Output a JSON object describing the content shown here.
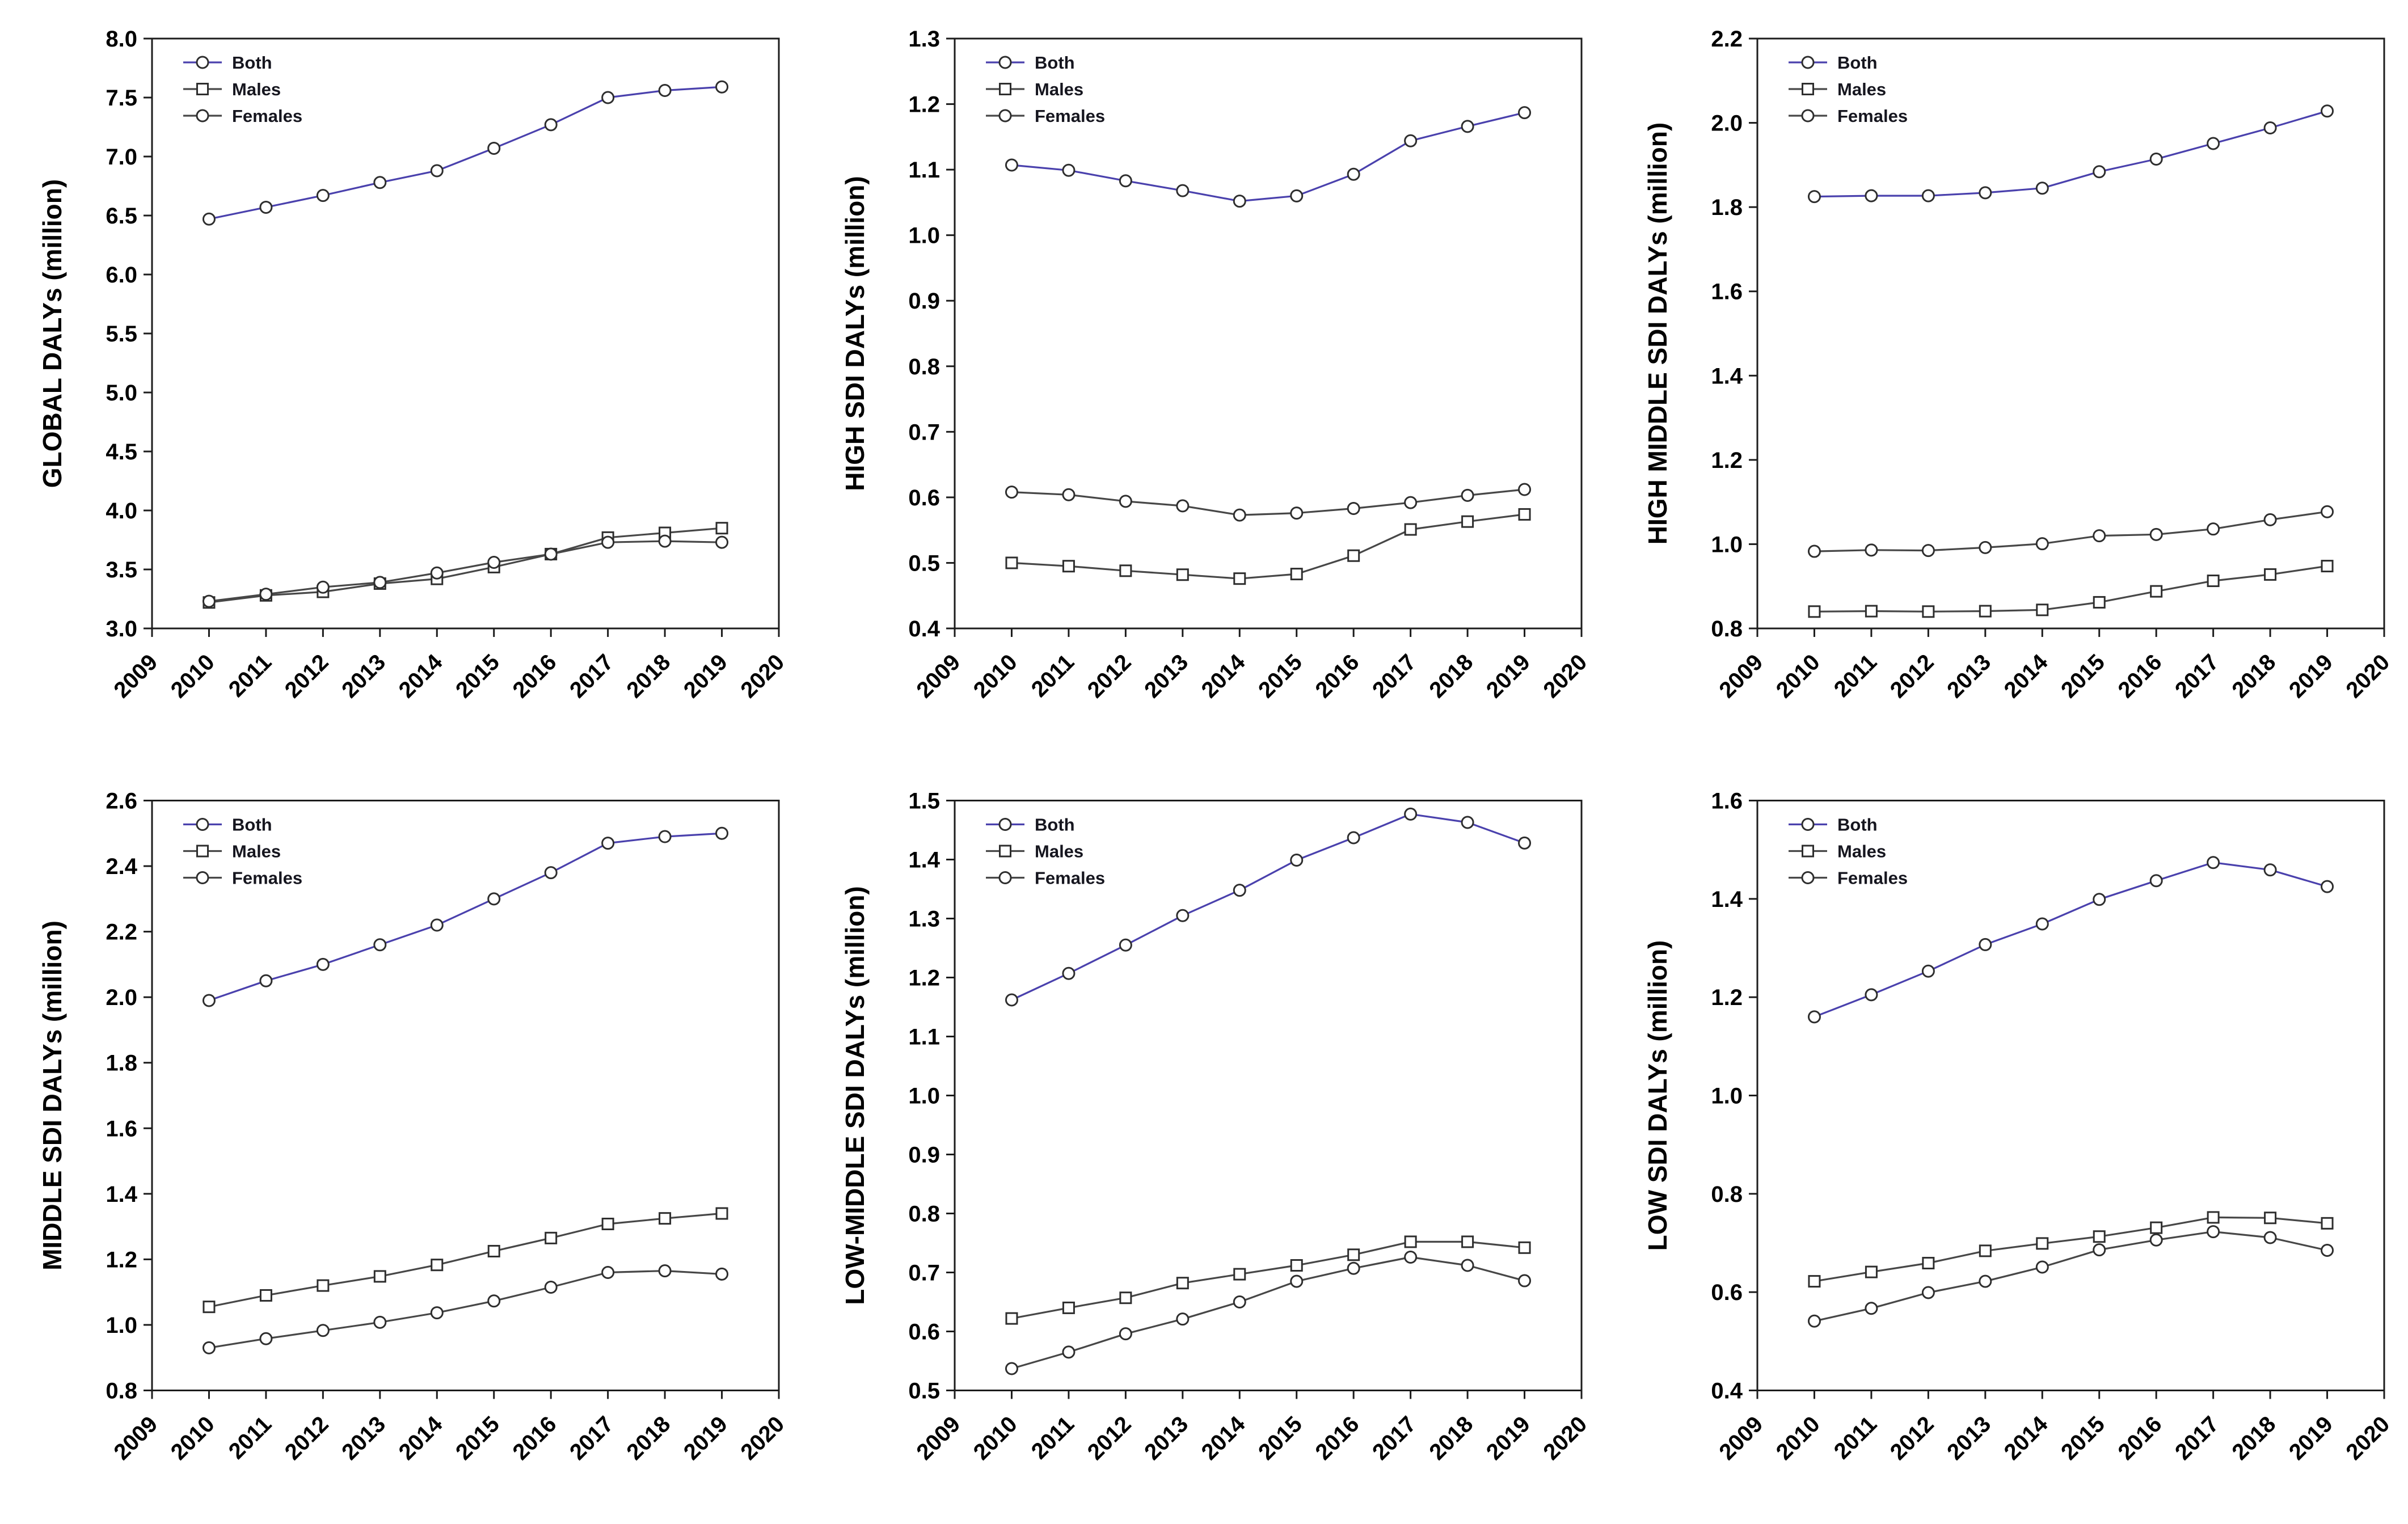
{
  "style": {
    "background": "#ffffff",
    "axis_color": "#1c1c1c",
    "text_color": "#000000",
    "both_line_color": "#4a41ad",
    "sex_line_color": "#474747",
    "marker_stroke": "#2e2e2e",
    "marker_fill": "#ffffff"
  },
  "chart_data": [
    {
      "type": "line",
      "ylabel": "GLOBAL DALYs (million)",
      "xlabel": "",
      "ylim": [
        3.0,
        8.0
      ],
      "ytick_step": 0.5,
      "xlim": [
        2009,
        2020
      ],
      "xticks": [
        2009,
        2010,
        2011,
        2012,
        2013,
        2014,
        2015,
        2016,
        2017,
        2018,
        2019,
        2020
      ],
      "x": [
        2010,
        2011,
        2012,
        2013,
        2014,
        2015,
        2016,
        2017,
        2018,
        2019
      ],
      "grid": false,
      "legend_position": "top-left",
      "series": [
        {
          "name": "Both",
          "marker": "circle",
          "color": "#4a41ad",
          "values": [
            6.47,
            6.57,
            6.67,
            6.78,
            6.88,
            7.07,
            7.27,
            7.5,
            7.56,
            7.59
          ]
        },
        {
          "name": "Males",
          "marker": "square",
          "color": "#474747",
          "values": [
            3.22,
            3.28,
            3.31,
            3.38,
            3.42,
            3.52,
            3.63,
            3.77,
            3.81,
            3.85
          ]
        },
        {
          "name": "Females",
          "marker": "circle",
          "color": "#474747",
          "values": [
            3.23,
            3.29,
            3.35,
            3.39,
            3.47,
            3.56,
            3.63,
            3.73,
            3.74,
            3.73
          ]
        }
      ]
    },
    {
      "type": "line",
      "ylabel": "HIGH SDI DALYs (million)",
      "xlabel": "",
      "ylim": [
        0.4,
        1.3
      ],
      "ytick_step": 0.1,
      "xlim": [
        2009,
        2020
      ],
      "xticks": [
        2009,
        2010,
        2011,
        2012,
        2013,
        2014,
        2015,
        2016,
        2017,
        2018,
        2019,
        2020
      ],
      "x": [
        2010,
        2011,
        2012,
        2013,
        2014,
        2015,
        2016,
        2017,
        2018,
        2019
      ],
      "grid": false,
      "legend_position": "top-left",
      "series": [
        {
          "name": "Both",
          "marker": "circle",
          "color": "#4a41ad",
          "values": [
            1.107,
            1.099,
            1.083,
            1.068,
            1.052,
            1.06,
            1.093,
            1.144,
            1.166,
            1.187
          ]
        },
        {
          "name": "Males",
          "marker": "square",
          "color": "#474747",
          "values": [
            0.5,
            0.495,
            0.488,
            0.482,
            0.476,
            0.483,
            0.511,
            0.551,
            0.563,
            0.574
          ]
        },
        {
          "name": "Females",
          "marker": "circle",
          "color": "#474747",
          "values": [
            0.608,
            0.604,
            0.594,
            0.587,
            0.573,
            0.576,
            0.583,
            0.592,
            0.603,
            0.612
          ]
        }
      ]
    },
    {
      "type": "line",
      "ylabel": "HIGH MIDDLE SDI DALYs (million)",
      "xlabel": "",
      "ylim": [
        0.8,
        2.2
      ],
      "ytick_step": 0.2,
      "xlim": [
        2009,
        2020
      ],
      "xticks": [
        2009,
        2010,
        2011,
        2012,
        2013,
        2014,
        2015,
        2016,
        2017,
        2018,
        2019,
        2020
      ],
      "x": [
        2010,
        2011,
        2012,
        2013,
        2014,
        2015,
        2016,
        2017,
        2018,
        2019
      ],
      "grid": false,
      "legend_position": "top-left",
      "series": [
        {
          "name": "Both",
          "marker": "circle",
          "color": "#4a41ad",
          "values": [
            1.825,
            1.827,
            1.827,
            1.834,
            1.845,
            1.884,
            1.914,
            1.951,
            1.988,
            2.028
          ]
        },
        {
          "name": "Males",
          "marker": "square",
          "color": "#474747",
          "values": [
            0.84,
            0.841,
            0.84,
            0.841,
            0.844,
            0.862,
            0.888,
            0.913,
            0.928,
            0.948
          ]
        },
        {
          "name": "Females",
          "marker": "circle",
          "color": "#474747",
          "values": [
            0.983,
            0.986,
            0.985,
            0.992,
            1.001,
            1.02,
            1.023,
            1.036,
            1.058,
            1.077
          ]
        }
      ]
    },
    {
      "type": "line",
      "ylabel": "MIDDLE SDI DALYs (million)",
      "xlabel": "",
      "ylim": [
        0.8,
        2.6
      ],
      "ytick_step": 0.2,
      "xlim": [
        2009,
        2020
      ],
      "xticks": [
        2009,
        2010,
        2011,
        2012,
        2013,
        2014,
        2015,
        2016,
        2017,
        2018,
        2019,
        2020
      ],
      "x": [
        2010,
        2011,
        2012,
        2013,
        2014,
        2015,
        2016,
        2017,
        2018,
        2019
      ],
      "grid": false,
      "legend_position": "top-left",
      "series": [
        {
          "name": "Both",
          "marker": "circle",
          "color": "#4a41ad",
          "values": [
            1.99,
            2.05,
            2.1,
            2.16,
            2.22,
            2.3,
            2.38,
            2.47,
            2.49,
            2.5
          ]
        },
        {
          "name": "Males",
          "marker": "square",
          "color": "#474747",
          "values": [
            1.055,
            1.09,
            1.12,
            1.148,
            1.183,
            1.225,
            1.265,
            1.308,
            1.325,
            1.34
          ]
        },
        {
          "name": "Females",
          "marker": "circle",
          "color": "#474747",
          "values": [
            0.93,
            0.958,
            0.983,
            1.008,
            1.037,
            1.073,
            1.115,
            1.16,
            1.165,
            1.155
          ]
        }
      ]
    },
    {
      "type": "line",
      "ylabel": "LOW-MIDDLE SDI DALYs (million)",
      "xlabel": "",
      "ylim": [
        0.5,
        1.5
      ],
      "ytick_step": 0.1,
      "xlim": [
        2009,
        2020
      ],
      "xticks": [
        2009,
        2010,
        2011,
        2012,
        2013,
        2014,
        2015,
        2016,
        2017,
        2018,
        2019,
        2020
      ],
      "x": [
        2010,
        2011,
        2012,
        2013,
        2014,
        2015,
        2016,
        2017,
        2018,
        2019
      ],
      "grid": false,
      "legend_position": "top-left",
      "series": [
        {
          "name": "Both",
          "marker": "circle",
          "color": "#4a41ad",
          "values": [
            1.162,
            1.207,
            1.255,
            1.305,
            1.348,
            1.399,
            1.437,
            1.477,
            1.463,
            1.428
          ]
        },
        {
          "name": "Males",
          "marker": "square",
          "color": "#474747",
          "values": [
            0.622,
            0.64,
            0.657,
            0.682,
            0.697,
            0.712,
            0.73,
            0.752,
            0.752,
            0.742
          ]
        },
        {
          "name": "Females",
          "marker": "circle",
          "color": "#474747",
          "values": [
            0.537,
            0.565,
            0.596,
            0.621,
            0.65,
            0.685,
            0.707,
            0.726,
            0.712,
            0.686
          ]
        }
      ]
    },
    {
      "type": "line",
      "ylabel": "LOW SDI DALYs (million)",
      "xlabel": "",
      "ylim": [
        0.4,
        1.6
      ],
      "ytick_step": 0.2,
      "xlim": [
        2009,
        2020
      ],
      "xticks": [
        2009,
        2010,
        2011,
        2012,
        2013,
        2014,
        2015,
        2016,
        2017,
        2018,
        2019,
        2020
      ],
      "x": [
        2010,
        2011,
        2012,
        2013,
        2014,
        2015,
        2016,
        2017,
        2018,
        2019
      ],
      "grid": false,
      "legend_position": "top-left",
      "series": [
        {
          "name": "Both",
          "marker": "circle",
          "color": "#4a41ad",
          "values": [
            1.16,
            1.205,
            1.253,
            1.307,
            1.349,
            1.399,
            1.437,
            1.474,
            1.459,
            1.425
          ]
        },
        {
          "name": "Males",
          "marker": "square",
          "color": "#474747",
          "values": [
            0.622,
            0.641,
            0.659,
            0.684,
            0.699,
            0.713,
            0.731,
            0.752,
            0.751,
            0.74
          ]
        },
        {
          "name": "Females",
          "marker": "circle",
          "color": "#474747",
          "values": [
            0.541,
            0.567,
            0.599,
            0.622,
            0.651,
            0.686,
            0.706,
            0.723,
            0.711,
            0.685
          ]
        }
      ]
    }
  ]
}
